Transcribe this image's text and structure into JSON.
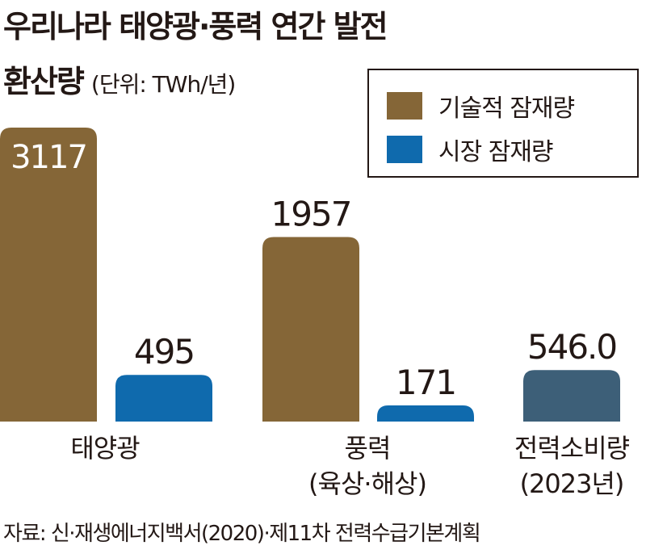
{
  "title_line1": "우리나라 태양광·풍력 연간 발전",
  "title_line2": "환산량",
  "unit": "(단위: TWh/년)",
  "source": "자료: 신·재생에너지백서(2020)·제11차 전력수급기본계획",
  "colors": {
    "technical": "#856637",
    "market": "#0f6aad",
    "consumption": "#3d5f78"
  },
  "chart_data": {
    "type": "bar",
    "title": "우리나라 태양광·풍력 연간 발전 환산량",
    "ylabel": "TWh/년",
    "legend_position": "top-right",
    "legend": [
      "기술적 잠재량",
      "시장 잠재량"
    ],
    "groups": [
      {
        "label": [
          "태양광"
        ],
        "bars": [
          {
            "series": "기술적 잠재량",
            "value": 3117,
            "label": "3117"
          },
          {
            "series": "시장 잠재량",
            "value": 495,
            "label": "495"
          }
        ]
      },
      {
        "label": [
          "풍력",
          "(육상·해상)"
        ],
        "bars": [
          {
            "series": "기술적 잠재량",
            "value": 1957,
            "label": "1957"
          },
          {
            "series": "시장 잠재량",
            "value": 171,
            "label": "171"
          }
        ]
      },
      {
        "label": [
          "전력소비량",
          "(2023년)"
        ],
        "bars": [
          {
            "series": "전력소비량",
            "value": 546.0,
            "label": "546.0"
          }
        ]
      }
    ],
    "ylim": [
      0,
      3117
    ]
  }
}
